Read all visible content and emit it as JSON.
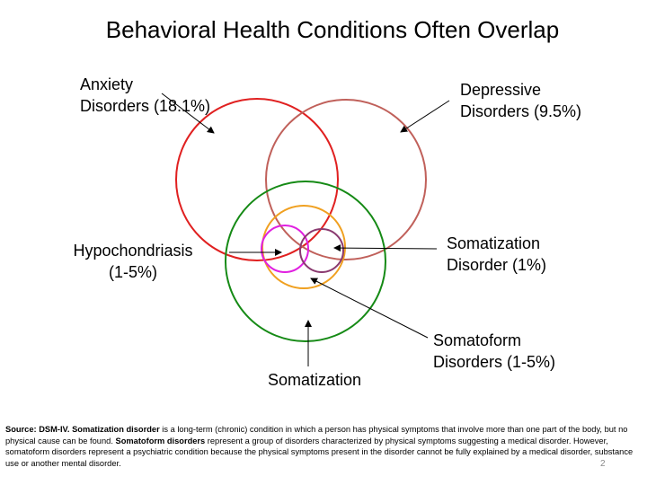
{
  "title": "Behavioral Health Conditions Often Overlap",
  "labels": {
    "anxiety": {
      "line1": "Anxiety",
      "line2": "Disorders (18.1%)"
    },
    "depressive": {
      "line1": "Depressive",
      "line2": "Disorders (9.5%)"
    },
    "hypochondriasis": {
      "line1": "Hypochondriasis",
      "line2": "(1-5%)"
    },
    "somatization_disorder": {
      "line1": "Somatization",
      "line2": "Disorder (1%)"
    },
    "somatoform": {
      "line1": "Somatoform",
      "line2": "Disorders (1-5%)"
    },
    "somatization": "Somatization"
  },
  "colors": {
    "anxiety": "#e02020",
    "depressive": "#c0605a",
    "somatization": "#158a15",
    "somatoform": "#f0a020",
    "hypochondriasis": "#e020e0",
    "somatization_disorder": "#8a3a70"
  },
  "footnote": {
    "source_label": "Source: DSM-IV.",
    "term1": "Somatization disorder",
    "text1": " is a long-term (chronic) condition in which a person has physical symptoms that involve more than one part of the body, but no physical cause can be found. ",
    "term2": "Somatoform disorders",
    "text2": " represent a group of disorders characterized by physical symptoms suggesting a medical disorder. However, somatoform disorders represent a psychiatric condition because the physical symptoms present in the disorder cannot be fully explained by a medical disorder, substance use or another mental disorder."
  },
  "page_number": "2"
}
